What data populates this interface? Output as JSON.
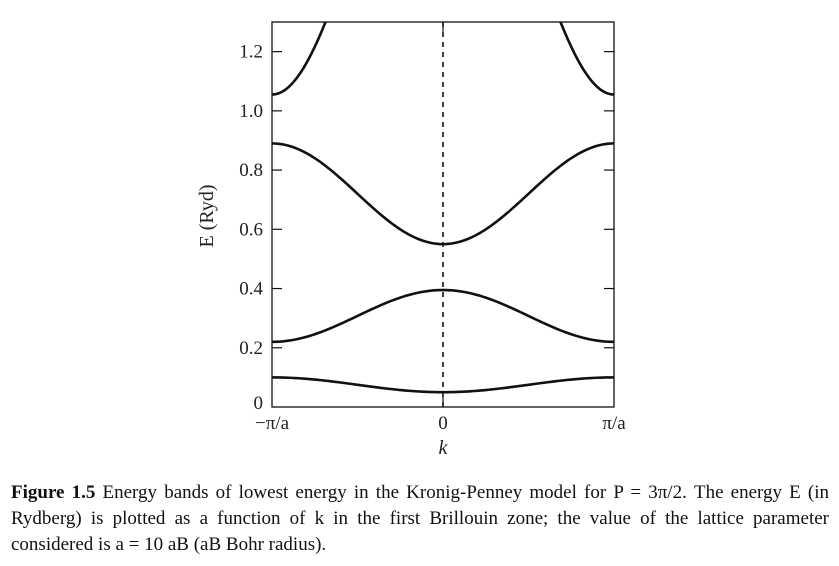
{
  "chart_data": {
    "type": "line",
    "title": "",
    "xlabel": "k",
    "ylabel": "E (Ryd)",
    "xlim": [
      -1,
      1
    ],
    "ylim": [
      0,
      1.3
    ],
    "x_unit": "π/a",
    "x_ticks": [
      {
        "value": -1,
        "label": "−π/a"
      },
      {
        "value": 0,
        "label": "0"
      },
      {
        "value": 1,
        "label": "π/a"
      }
    ],
    "y_ticks": [
      {
        "value": 0,
        "label": "0"
      },
      {
        "value": 0.2,
        "label": "0.2"
      },
      {
        "value": 0.4,
        "label": "0.4"
      },
      {
        "value": 0.6,
        "label": "0.6"
      },
      {
        "value": 0.8,
        "label": "0.8"
      },
      {
        "value": 1.0,
        "label": "1.0"
      },
      {
        "value": 1.2,
        "label": "1.2"
      }
    ],
    "vertical_reference_line": {
      "x": 0,
      "style": "dashed"
    },
    "grid": false,
    "series": [
      {
        "band_edge_low": 0.05,
        "band_edge_high": 0.1,
        "min_at": "center"
      },
      {
        "band_edge_low": 0.22,
        "band_edge_high": 0.395,
        "min_at": "edges"
      },
      {
        "band_edge_low": 0.55,
        "band_edge_high": 0.89,
        "min_at": "center"
      },
      {
        "band_edge_low": 1.055,
        "band_edge_high": 1.3,
        "min_at": "edges",
        "clipped": true
      }
    ]
  },
  "caption": {
    "label": "Figure 1.5",
    "text": " Energy bands of lowest energy in the Kronig-Penney model for P = 3π/2. The energy E (in Rydberg) is plotted as a function of k in the first Brillouin zone; the value of the lattice parameter considered is a = 10 aB (aB Bohr radius)."
  }
}
